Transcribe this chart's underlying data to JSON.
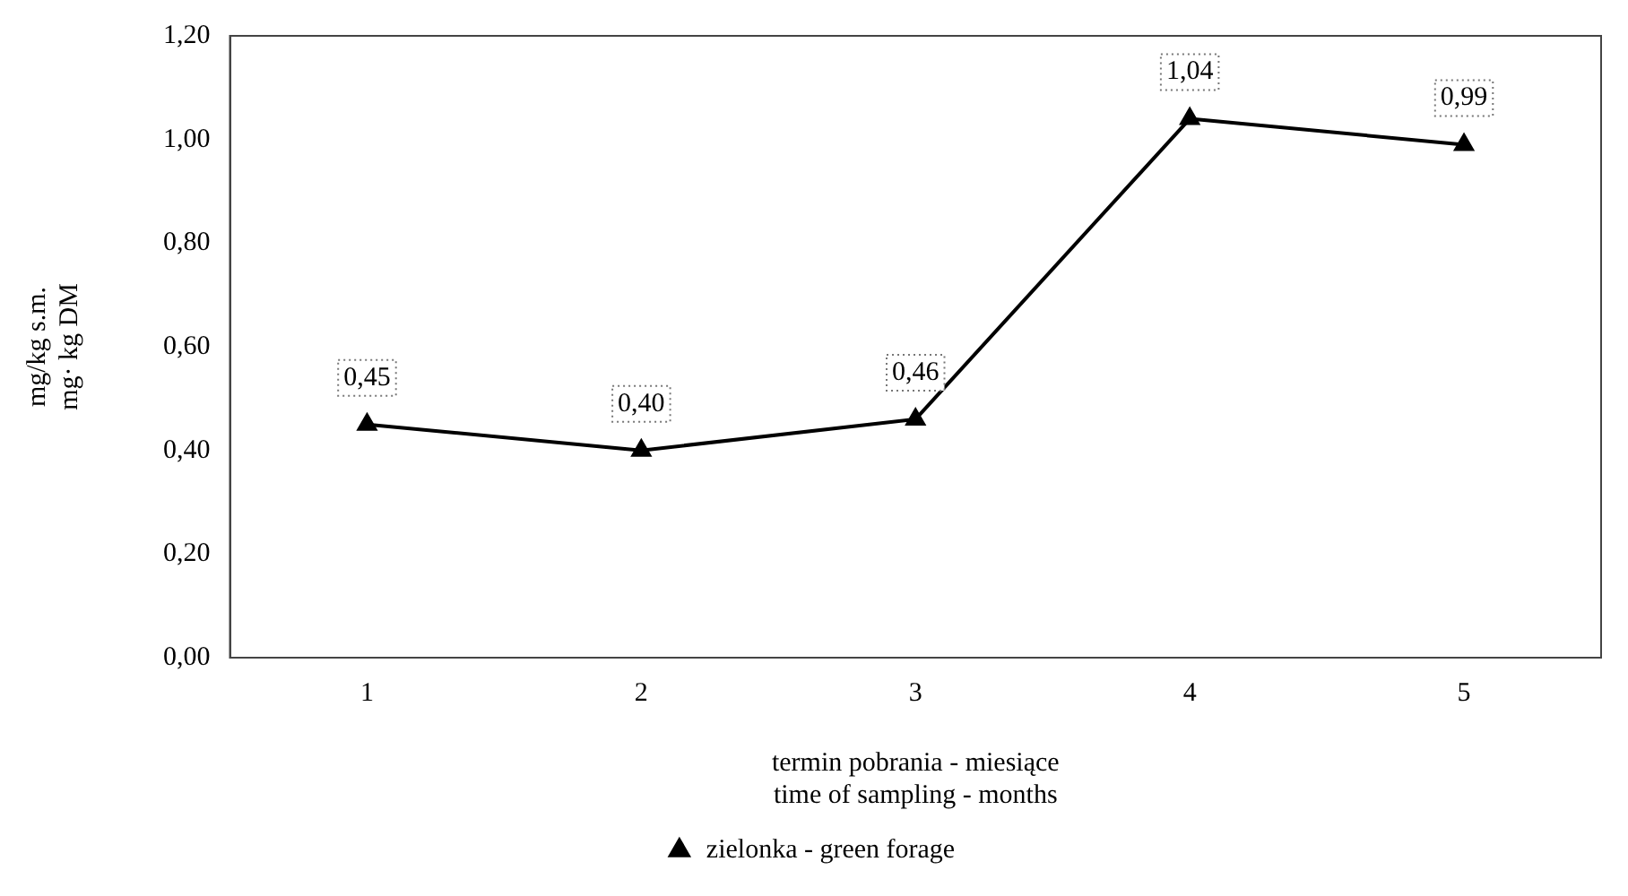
{
  "chart_data": {
    "type": "line",
    "xlabel": "termin pobrania - miesiące\ntime of sampling - months",
    "ylabel": "mg/kg s.m.\nmg· kg DM",
    "categories": [
      "1",
      "2",
      "3",
      "4",
      "5"
    ],
    "series": [
      {
        "name": "zielonka - green forage",
        "color": "#000000",
        "values": [
          0.45,
          0.4,
          0.46,
          1.04,
          0.99
        ],
        "value_labels": [
          "0,45",
          "0,40",
          "0,46",
          "1,04",
          "0,99"
        ]
      }
    ],
    "ylim": [
      0,
      1.2
    ],
    "yticks": [
      {
        "value": 0,
        "label": "0,00"
      },
      {
        "value": 0.2,
        "label": "0,20"
      },
      {
        "value": 0.4,
        "label": "0,40"
      },
      {
        "value": 0.6,
        "label": "0,60"
      },
      {
        "value": 0.8,
        "label": "0,80"
      },
      {
        "value": 1.0,
        "label": "1,00"
      },
      {
        "value": 1.2,
        "label": "1,20"
      }
    ],
    "grid": false,
    "legend": "bottom",
    "marker": "triangle",
    "line_style": "solid"
  }
}
